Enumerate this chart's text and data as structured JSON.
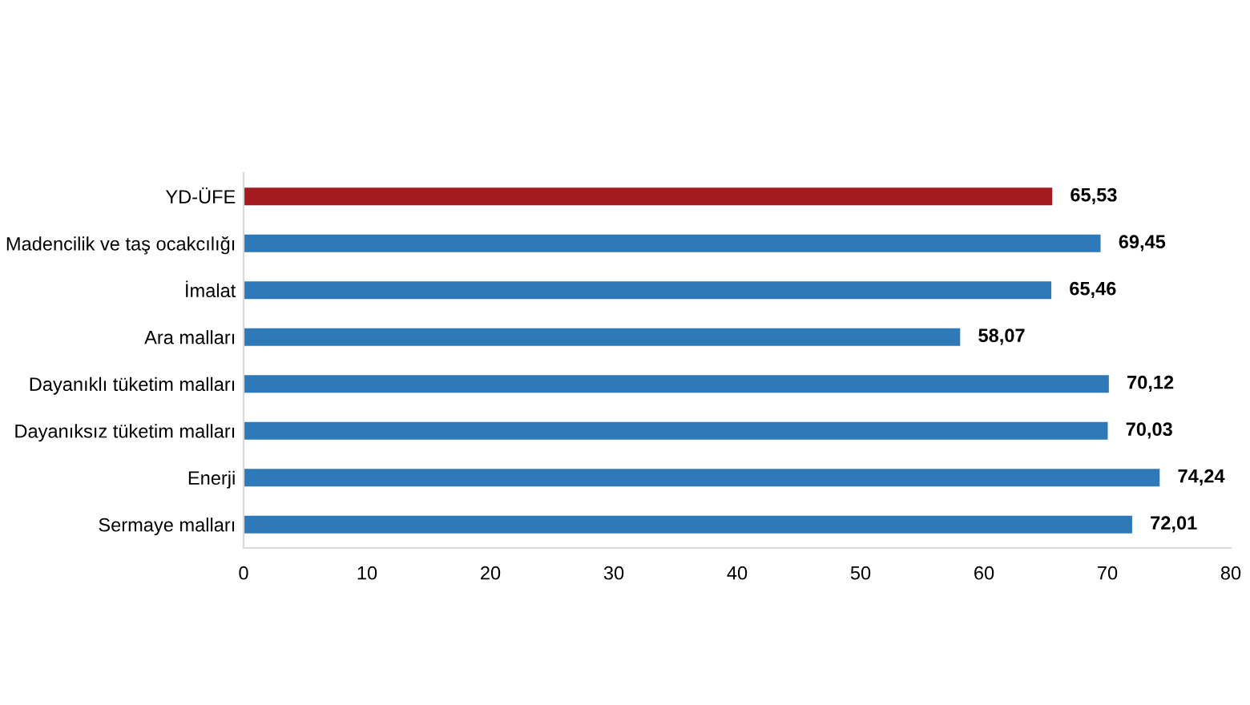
{
  "chart_data": {
    "type": "bar",
    "orientation": "horizontal",
    "categories": [
      "YD-ÜFE",
      "Madencilik ve taş ocakcılığı",
      "İmalat",
      "Ara malları",
      "Dayanıklı tüketim malları",
      "Dayanıksız tüketim malları",
      "Enerji",
      "Sermaye malları"
    ],
    "values": [
      65.53,
      69.45,
      65.46,
      58.07,
      70.12,
      70.03,
      74.24,
      72.01
    ],
    "colors": [
      "#a31a1f",
      "#2e7ab8",
      "#2e7ab8",
      "#2e7ab8",
      "#2e7ab8",
      "#2e7ab8",
      "#2e7ab8",
      "#2e7ab8"
    ],
    "value_labels": [
      "65,53",
      "69,45",
      "65,46",
      "58,07",
      "70,12",
      "70,03",
      "74,24",
      "72,01"
    ],
    "xlim": [
      0,
      80
    ],
    "xticks": [
      0,
      10,
      20,
      30,
      40,
      50,
      60,
      70,
      80
    ],
    "grid": false,
    "legend": false
  }
}
